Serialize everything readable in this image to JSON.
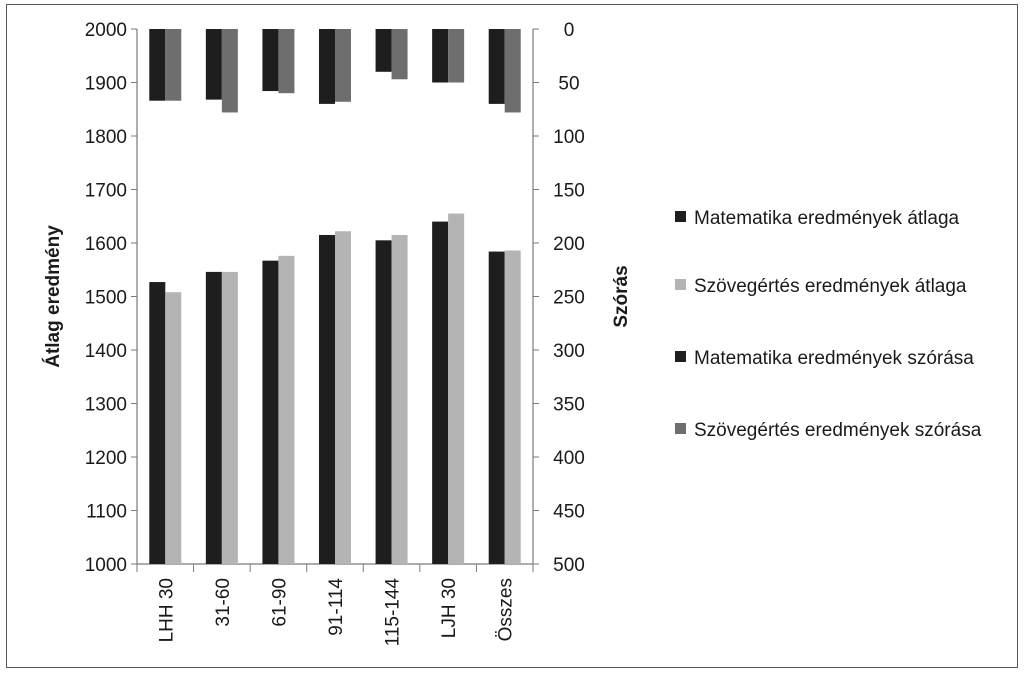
{
  "chart_data": {
    "type": "bar",
    "categories": [
      "LHH 30",
      "31-60",
      "61-90",
      "91-114",
      "115-144",
      "LJH 30",
      "Összes"
    ],
    "left_axis": {
      "label": "Átlag eredmény",
      "range": [
        1000,
        2000
      ],
      "ticks": [
        "1000",
        "1100",
        "1200",
        "1300",
        "1400",
        "1500",
        "1600",
        "1700",
        "1800",
        "1900",
        "2000"
      ]
    },
    "right_axis": {
      "label": "Szórás",
      "range": [
        0,
        500
      ],
      "inverted": true,
      "ticks": [
        "0",
        "50",
        "100",
        "150",
        "200",
        "250",
        "300",
        "350",
        "400",
        "450",
        "500"
      ]
    },
    "series": [
      {
        "name": "Matematika eredmények átlaga",
        "axis": "left",
        "color": "#1e1e1e",
        "values": [
          1527,
          1546,
          1567,
          1615,
          1605,
          1640,
          1584
        ]
      },
      {
        "name": "Szövegértés eredmények átlaga",
        "axis": "left",
        "color": "#b4b4b4",
        "values": [
          1508,
          1546,
          1576,
          1622,
          1615,
          1655,
          1586
        ]
      },
      {
        "name": "Matematika eredmények szórása",
        "axis": "right",
        "color": "#1e1e1e",
        "values": [
          67,
          66,
          58,
          70,
          40,
          50,
          70
        ]
      },
      {
        "name": "Szövegértés eredmények szórása",
        "axis": "right",
        "color": "#6e6e6e",
        "values": [
          67,
          78,
          60,
          68,
          47,
          50,
          78
        ]
      }
    ],
    "legend_position": "right"
  },
  "legend": {
    "items": [
      {
        "label": "Matematika eredmények átlaga",
        "color": "#1e1e1e"
      },
      {
        "label": "Szövegértés eredmények átlaga",
        "color": "#b4b4b4"
      },
      {
        "label": "Matematika eredmények szórása",
        "color": "#1e1e1e"
      },
      {
        "label": "Szövegértés eredmények szórása",
        "color": "#6e6e6e"
      }
    ]
  }
}
